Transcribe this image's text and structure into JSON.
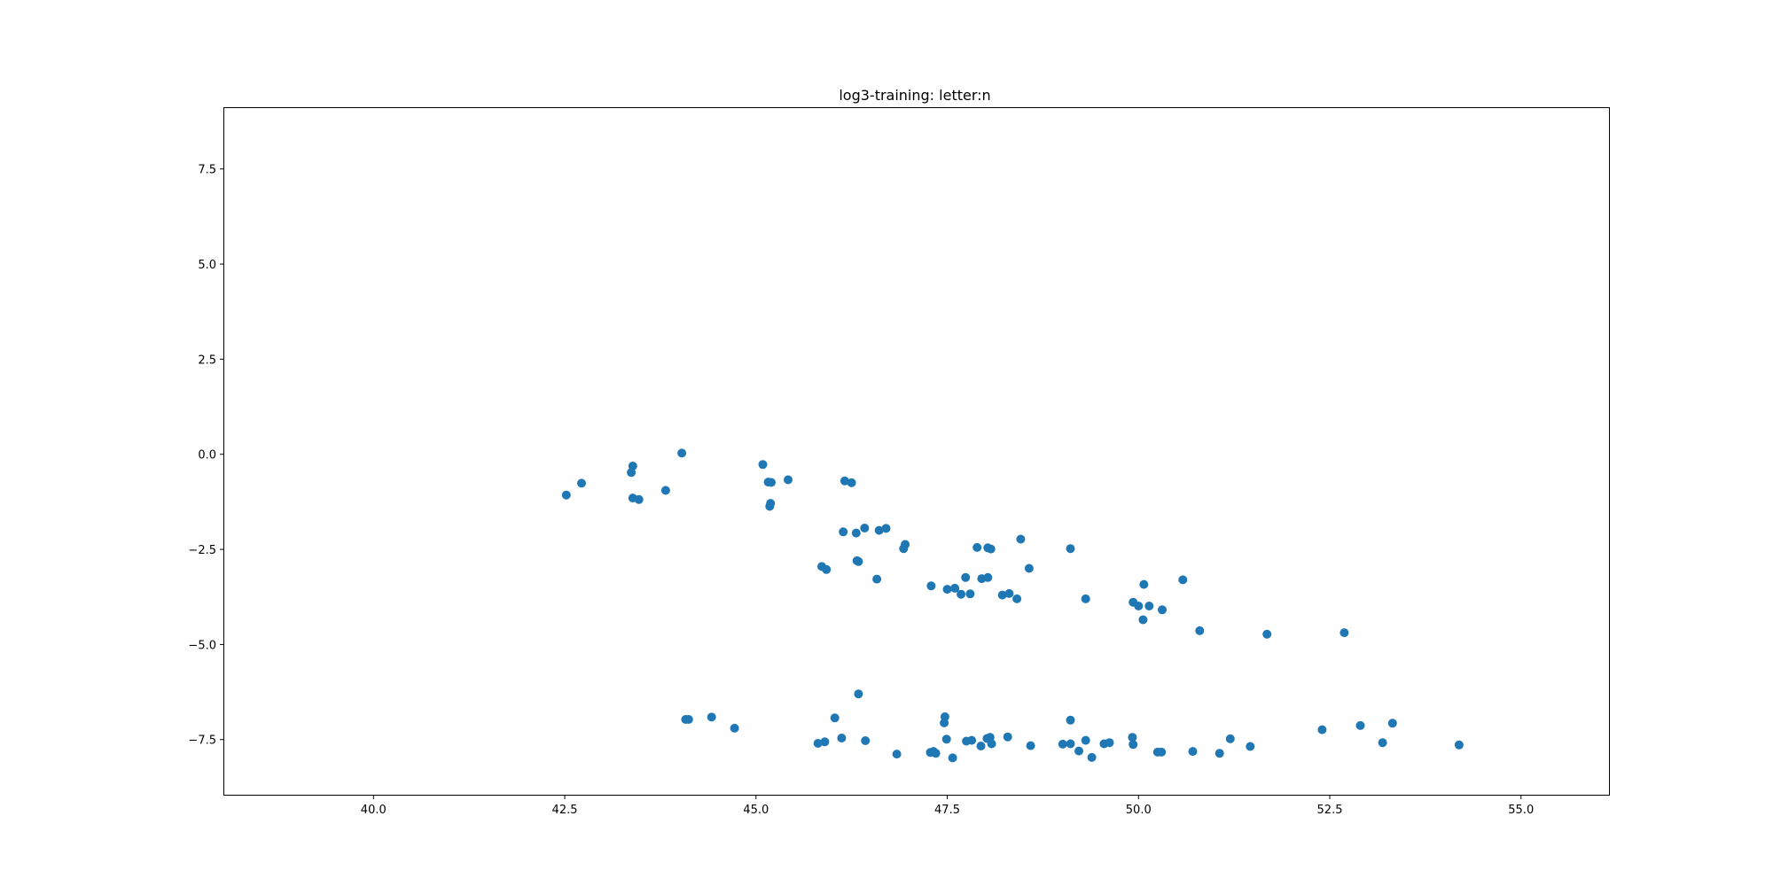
{
  "chart_data": {
    "type": "scatter",
    "title": "log3-training: letter:n",
    "xlabel": "",
    "ylabel": "",
    "xlim": [
      38.05,
      56.15
    ],
    "ylim": [
      -8.95,
      9.1
    ],
    "xticks": [
      40.0,
      42.5,
      45.0,
      47.5,
      50.0,
      52.5,
      55.0
    ],
    "xtick_labels": [
      "40.0",
      "42.5",
      "45.0",
      "47.5",
      "50.0",
      "52.5",
      "55.0"
    ],
    "yticks": [
      7.5,
      5.0,
      2.5,
      0.0,
      -2.5,
      -5.0,
      -7.5
    ],
    "ytick_labels": [
      "7.5",
      "5.0",
      "2.5",
      "0.0",
      "−2.5",
      "−5.0",
      "−7.5"
    ],
    "grid": false,
    "marker_color": "#1f77b4",
    "series": [
      {
        "points": [
          [
            42.52,
            -1.07
          ],
          [
            42.72,
            -0.76
          ],
          [
            43.37,
            -0.48
          ],
          [
            43.39,
            -0.31
          ],
          [
            43.39,
            -1.15
          ],
          [
            43.47,
            -1.19
          ],
          [
            43.82,
            -0.95
          ],
          [
            44.03,
            0.03
          ],
          [
            45.09,
            -0.27
          ],
          [
            45.16,
            -0.73
          ],
          [
            45.2,
            -0.74
          ],
          [
            45.19,
            -1.29
          ],
          [
            45.18,
            -1.37
          ],
          [
            45.42,
            -0.67
          ],
          [
            46.16,
            -0.7
          ],
          [
            46.25,
            -0.75
          ],
          [
            46.14,
            -2.04
          ],
          [
            46.31,
            -2.07
          ],
          [
            46.42,
            -1.94
          ],
          [
            46.61,
            -2.0
          ],
          [
            46.7,
            -1.95
          ],
          [
            46.95,
            -2.37
          ],
          [
            46.93,
            -2.48
          ],
          [
            45.86,
            -2.95
          ],
          [
            45.92,
            -3.03
          ],
          [
            46.32,
            -2.8
          ],
          [
            46.34,
            -2.82
          ],
          [
            46.58,
            -3.28
          ],
          [
            47.29,
            -3.46
          ],
          [
            47.5,
            -3.55
          ],
          [
            47.6,
            -3.52
          ],
          [
            47.68,
            -3.68
          ],
          [
            47.74,
            -3.24
          ],
          [
            47.8,
            -3.67
          ],
          [
            47.89,
            -2.45
          ],
          [
            47.95,
            -3.27
          ],
          [
            48.03,
            -3.24
          ],
          [
            48.03,
            -2.46
          ],
          [
            48.07,
            -2.49
          ],
          [
            48.22,
            -3.7
          ],
          [
            48.31,
            -3.66
          ],
          [
            48.41,
            -3.8
          ],
          [
            48.46,
            -2.23
          ],
          [
            48.57,
            -3.0
          ],
          [
            49.11,
            -2.48
          ],
          [
            49.31,
            -3.8
          ],
          [
            49.93,
            -3.89
          ],
          [
            50.0,
            -3.99
          ],
          [
            50.07,
            -3.42
          ],
          [
            50.14,
            -3.99
          ],
          [
            50.06,
            -4.35
          ],
          [
            50.31,
            -4.09
          ],
          [
            50.58,
            -3.3
          ],
          [
            50.8,
            -4.64
          ],
          [
            51.68,
            -4.73
          ],
          [
            52.69,
            -4.69
          ],
          [
            46.34,
            -6.3
          ],
          [
            44.08,
            -6.97
          ],
          [
            44.12,
            -6.97
          ],
          [
            44.42,
            -6.91
          ],
          [
            44.72,
            -7.2
          ],
          [
            45.81,
            -7.6
          ],
          [
            45.9,
            -7.56
          ],
          [
            46.03,
            -6.93
          ],
          [
            46.12,
            -7.46
          ],
          [
            46.43,
            -7.53
          ],
          [
            46.84,
            -7.88
          ],
          [
            47.28,
            -7.84
          ],
          [
            47.32,
            -7.81
          ],
          [
            47.35,
            -7.86
          ],
          [
            47.47,
            -6.9
          ],
          [
            47.46,
            -7.06
          ],
          [
            47.49,
            -7.49
          ],
          [
            47.57,
            -7.98
          ],
          [
            47.75,
            -7.54
          ],
          [
            47.82,
            -7.52
          ],
          [
            47.94,
            -7.67
          ],
          [
            48.02,
            -7.47
          ],
          [
            48.06,
            -7.44
          ],
          [
            48.08,
            -7.61
          ],
          [
            48.29,
            -7.43
          ],
          [
            48.59,
            -7.66
          ],
          [
            49.01,
            -7.62
          ],
          [
            49.11,
            -7.61
          ],
          [
            49.11,
            -6.99
          ],
          [
            49.22,
            -7.8
          ],
          [
            49.31,
            -7.52
          ],
          [
            49.39,
            -7.97
          ],
          [
            49.55,
            -7.61
          ],
          [
            49.62,
            -7.58
          ],
          [
            49.92,
            -7.44
          ],
          [
            49.93,
            -7.63
          ],
          [
            50.25,
            -7.83
          ],
          [
            50.3,
            -7.83
          ],
          [
            50.71,
            -7.81
          ],
          [
            51.06,
            -7.86
          ],
          [
            51.2,
            -7.48
          ],
          [
            51.46,
            -7.68
          ],
          [
            52.4,
            -7.24
          ],
          [
            52.9,
            -7.13
          ],
          [
            53.19,
            -7.58
          ],
          [
            53.32,
            -7.07
          ],
          [
            54.19,
            -7.64
          ]
        ]
      }
    ]
  }
}
